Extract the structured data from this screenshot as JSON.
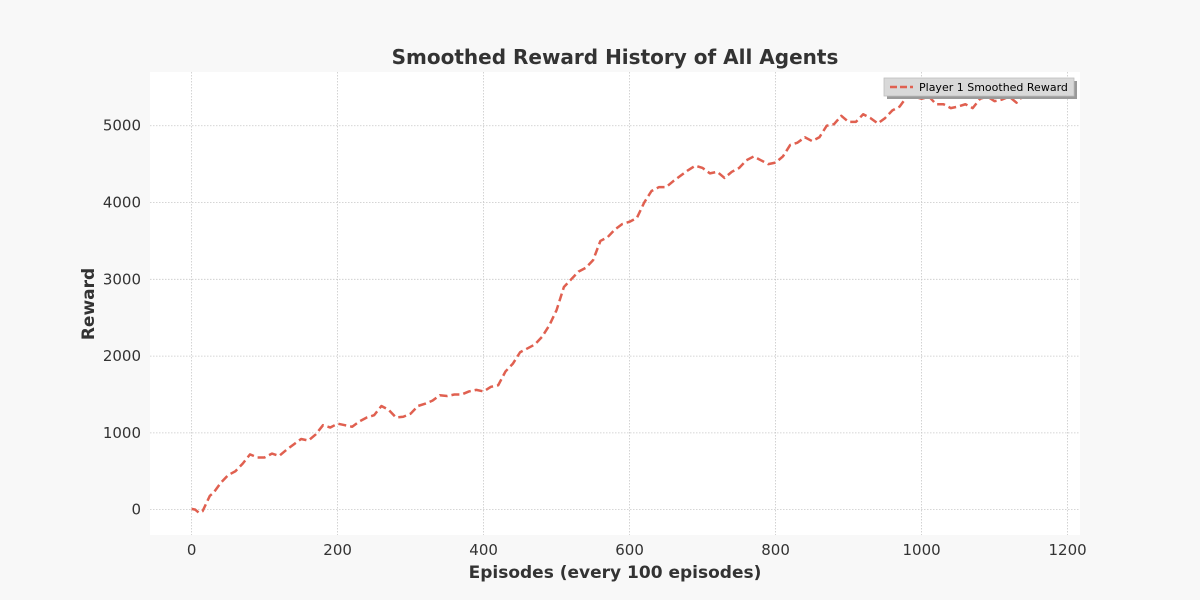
{
  "chart_data": {
    "type": "line",
    "title": "Smoothed Reward History of All Agents",
    "xlabel": "Episodes (every 100 episodes)",
    "ylabel": "Reward",
    "xlim": [
      -57,
      1217
    ],
    "ylim": [
      -330,
      5700
    ],
    "x_ticks": [
      0,
      200,
      400,
      600,
      800,
      1000,
      1200
    ],
    "y_ticks": [
      0,
      1000,
      2000,
      3000,
      4000,
      5000
    ],
    "grid": true,
    "legend_position": "top-right",
    "series": [
      {
        "name": "Player 1 Smoothed Reward",
        "color": "#e06050",
        "line_style": "dashed",
        "x": [
          0,
          5,
          10,
          15,
          20,
          25,
          30,
          40,
          50,
          60,
          70,
          80,
          90,
          100,
          110,
          120,
          130,
          140,
          150,
          160,
          170,
          180,
          190,
          200,
          210,
          220,
          230,
          240,
          250,
          260,
          270,
          280,
          290,
          300,
          310,
          320,
          330,
          340,
          350,
          360,
          370,
          380,
          390,
          400,
          410,
          420,
          430,
          440,
          450,
          460,
          470,
          480,
          490,
          500,
          510,
          520,
          530,
          540,
          550,
          560,
          570,
          580,
          590,
          600,
          610,
          620,
          630,
          640,
          650,
          660,
          670,
          680,
          690,
          700,
          710,
          720,
          730,
          740,
          750,
          760,
          770,
          780,
          790,
          800,
          810,
          820,
          830,
          840,
          850,
          860,
          870,
          880,
          890,
          900,
          910,
          920,
          930,
          940,
          950,
          960,
          970,
          980,
          990,
          1000,
          1010,
          1020,
          1030,
          1040,
          1050,
          1060,
          1070,
          1080,
          1090,
          1100,
          1110,
          1120,
          1130,
          1140
        ],
        "values": [
          10,
          0,
          -40,
          -20,
          80,
          180,
          220,
          350,
          450,
          500,
          600,
          720,
          680,
          680,
          730,
          700,
          780,
          850,
          920,
          900,
          980,
          1100,
          1070,
          1120,
          1100,
          1080,
          1150,
          1200,
          1230,
          1350,
          1300,
          1200,
          1210,
          1250,
          1350,
          1380,
          1420,
          1490,
          1480,
          1500,
          1500,
          1540,
          1560,
          1540,
          1600,
          1620,
          1800,
          1900,
          2050,
          2100,
          2150,
          2250,
          2400,
          2600,
          2900,
          3000,
          3100,
          3150,
          3250,
          3500,
          3550,
          3650,
          3720,
          3750,
          3800,
          4000,
          4150,
          4200,
          4200,
          4280,
          4350,
          4420,
          4480,
          4450,
          4380,
          4400,
          4320,
          4400,
          4450,
          4550,
          4600,
          4550,
          4500,
          4520,
          4600,
          4750,
          4780,
          4850,
          4800,
          4850,
          5000,
          5020,
          5130,
          5050,
          5050,
          5150,
          5100,
          5030,
          5100,
          5200,
          5250,
          5380,
          5380,
          5350,
          5380,
          5280,
          5280,
          5230,
          5250,
          5280,
          5230,
          5350,
          5380,
          5320,
          5340,
          5380,
          5300,
          5400
        ]
      }
    ]
  }
}
